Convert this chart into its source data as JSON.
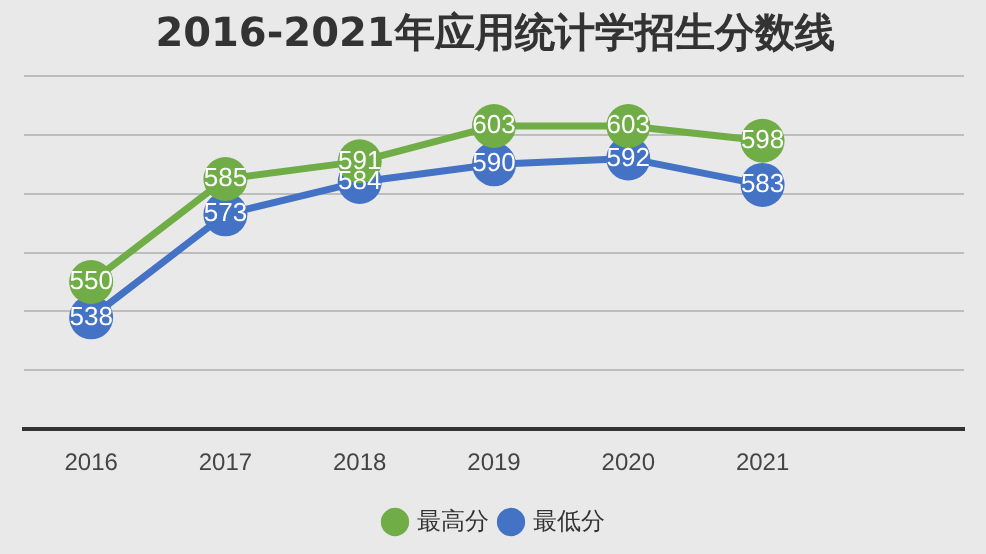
{
  "chart_data": {
    "type": "line",
    "title": "2016-2021年应用统计学招生分数线",
    "categories": [
      "2016",
      "2017",
      "2018",
      "2019",
      "2020",
      "2021",
      null
    ],
    "series": [
      {
        "name": "最高分",
        "color": "#70ad47",
        "values": [
          550,
          585,
          591,
          603,
          603,
          598,
          null
        ]
      },
      {
        "name": "最低分",
        "color": "#4472c4",
        "values": [
          538,
          573,
          584,
          590,
          592,
          583,
          null
        ]
      }
    ],
    "ylim": [
      500,
      620
    ],
    "yticks": [
      {
        "value": 500,
        "label": null
      },
      {
        "value": 520,
        "label": null
      },
      {
        "value": 540,
        "label": null
      },
      {
        "value": 560,
        "label": null
      },
      {
        "value": 580,
        "label": null
      },
      {
        "value": 600,
        "label": null
      },
      {
        "value": 620,
        "label": null
      }
    ],
    "tick_labels": "x",
    "grid": "y",
    "legend": "bottom",
    "marker": "circle",
    "line_style": "solid",
    "data_labels": true
  }
}
